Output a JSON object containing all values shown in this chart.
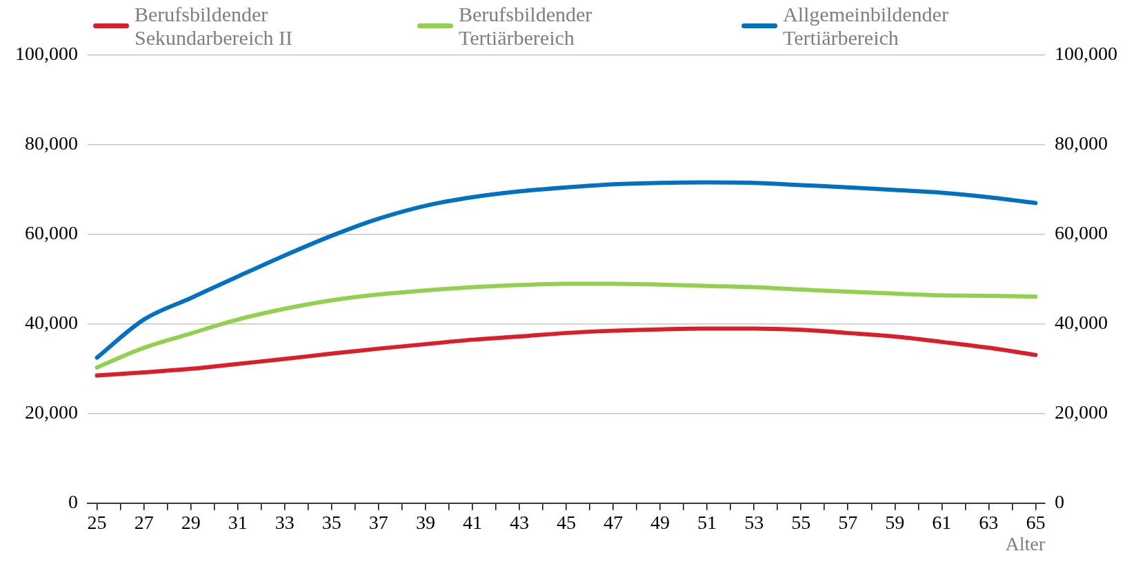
{
  "chart_data": {
    "type": "line",
    "xlabel": "Alter",
    "x": [
      25,
      27,
      29,
      31,
      33,
      35,
      37,
      39,
      41,
      43,
      45,
      47,
      49,
      51,
      53,
      55,
      57,
      59,
      61,
      63,
      65
    ],
    "xlim": [
      24.6,
      65.4
    ],
    "xticks": [
      25,
      {
        "value": 26,
        "label": null
      },
      27,
      {
        "value": 28,
        "label": null
      },
      29,
      {
        "value": 30,
        "label": null
      },
      31,
      {
        "value": 32,
        "label": null
      },
      33,
      {
        "value": 34,
        "label": null
      },
      35,
      {
        "value": 36,
        "label": null
      },
      37,
      {
        "value": 38,
        "label": null
      },
      39,
      {
        "value": 40,
        "label": null
      },
      41,
      {
        "value": 42,
        "label": null
      },
      43,
      {
        "value": 44,
        "label": null
      },
      45,
      {
        "value": 46,
        "label": null
      },
      47,
      {
        "value": 48,
        "label": null
      },
      49,
      {
        "value": 50,
        "label": null
      },
      51,
      {
        "value": 52,
        "label": null
      },
      53,
      {
        "value": 54,
        "label": null
      },
      55,
      {
        "value": 56,
        "label": null
      },
      57,
      {
        "value": 58,
        "label": null
      },
      59,
      {
        "value": 60,
        "label": null
      },
      61,
      {
        "value": 62,
        "label": null
      },
      63,
      {
        "value": 64,
        "label": null
      },
      65
    ],
    "ylim": [
      0,
      100000
    ],
    "yticks": [
      0,
      {
        "value": 20000,
        "label": "20,000"
      },
      {
        "value": 40000,
        "label": "40,000"
      },
      {
        "value": 60000,
        "label": "60,000"
      },
      {
        "value": 80000,
        "label": "80,000"
      },
      {
        "value": 100000,
        "label": "100,000"
      }
    ],
    "y2lim": [
      0,
      100000
    ],
    "y2ticks": [
      0,
      {
        "value": 20000,
        "label": "20,000"
      },
      {
        "value": 40000,
        "label": "40,000"
      },
      {
        "value": 60000,
        "label": "60,000"
      },
      {
        "value": 80000,
        "label": "80,000"
      },
      {
        "value": 100000,
        "label": "100,000"
      }
    ],
    "grid": "y",
    "legend": "top",
    "marker": "none",
    "line_style": "solid",
    "series": [
      {
        "name": "Berufsbildender Sekundarbereich II",
        "color": "#d9202a",
        "values": [
          28500,
          29200,
          30000,
          31100,
          32200,
          33400,
          34500,
          35500,
          36500,
          37200,
          38000,
          38500,
          38800,
          39000,
          39000,
          38700,
          38000,
          37200,
          36000,
          34700,
          33100
        ]
      },
      {
        "name": "Berufsbildender Tertiärbereich",
        "color": "#92d050",
        "values": [
          30300,
          34700,
          37900,
          41000,
          43400,
          45300,
          46600,
          47500,
          48200,
          48700,
          49000,
          49000,
          48800,
          48500,
          48200,
          47700,
          47200,
          46800,
          46400,
          46300,
          46100
        ]
      },
      {
        "name": "Allgemeinbildender Tertiärbereich",
        "color": "#0070c0",
        "values": [
          32500,
          41000,
          45800,
          50600,
          55300,
          59700,
          63500,
          66400,
          68300,
          69600,
          70500,
          71200,
          71500,
          71600,
          71500,
          71000,
          70500,
          69900,
          69300,
          68300,
          67000
        ]
      }
    ]
  }
}
